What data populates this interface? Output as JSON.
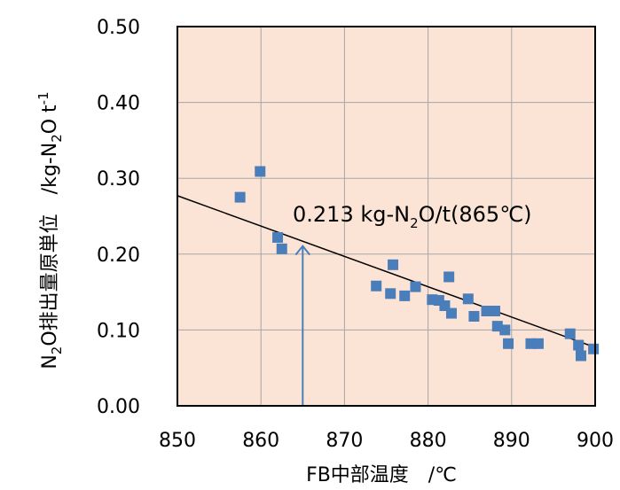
{
  "chart_data": {
    "type": "scatter",
    "title": "",
    "xlabel": "FB中部温度　/℃",
    "ylabel": {
      "n": "N",
      "sub2": "2",
      "rest": "O排出量原単位　/kg-N",
      "sub2b": "2",
      "o": "O t",
      "sup": "-1"
    },
    "xlim": [
      850,
      900
    ],
    "ylim": [
      0.0,
      0.5
    ],
    "x_ticks": [
      "850",
      "860",
      "870",
      "880",
      "890",
      "900"
    ],
    "y_ticks": [
      "0.00",
      "0.10",
      "0.20",
      "0.30",
      "0.40",
      "0.50"
    ],
    "grid": true,
    "plot_background": "#fbe4d5",
    "marker_color": "#4a7ebb",
    "points": [
      {
        "x": 857.5,
        "y": 0.275
      },
      {
        "x": 859.9,
        "y": 0.309
      },
      {
        "x": 862.0,
        "y": 0.222
      },
      {
        "x": 862.5,
        "y": 0.207
      },
      {
        "x": 873.8,
        "y": 0.158
      },
      {
        "x": 875.5,
        "y": 0.148
      },
      {
        "x": 875.8,
        "y": 0.186
      },
      {
        "x": 877.2,
        "y": 0.145
      },
      {
        "x": 878.5,
        "y": 0.157
      },
      {
        "x": 880.5,
        "y": 0.14
      },
      {
        "x": 881.3,
        "y": 0.139
      },
      {
        "x": 882.0,
        "y": 0.132
      },
      {
        "x": 882.5,
        "y": 0.17
      },
      {
        "x": 882.8,
        "y": 0.122
      },
      {
        "x": 884.8,
        "y": 0.141
      },
      {
        "x": 885.5,
        "y": 0.118
      },
      {
        "x": 887.0,
        "y": 0.125
      },
      {
        "x": 888.0,
        "y": 0.125
      },
      {
        "x": 888.3,
        "y": 0.105
      },
      {
        "x": 889.2,
        "y": 0.1
      },
      {
        "x": 889.6,
        "y": 0.082
      },
      {
        "x": 892.3,
        "y": 0.082
      },
      {
        "x": 893.2,
        "y": 0.082
      },
      {
        "x": 897.0,
        "y": 0.095
      },
      {
        "x": 898.0,
        "y": 0.08
      },
      {
        "x": 898.3,
        "y": 0.066
      },
      {
        "x": 899.8,
        "y": 0.075
      }
    ],
    "trendline": {
      "x": [
        850,
        900
      ],
      "y": [
        0.277,
        0.077
      ],
      "color": "#000000"
    },
    "annotation": {
      "pre": "0.213 kg-N",
      "sub": "2",
      "post": "O/t(865℃)",
      "arrow_x": 865,
      "arrow_y_tip": 0.213,
      "arrow_color": "#4a7ebb"
    }
  }
}
